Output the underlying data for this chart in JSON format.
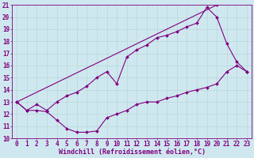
{
  "bg_color": "#cfe8ef",
  "line_color": "#800080",
  "grid_color": "#b0d4d4",
  "xlim": [
    -0.5,
    23.5
  ],
  "ylim": [
    10,
    21
  ],
  "xticks": [
    0,
    1,
    2,
    3,
    4,
    5,
    6,
    7,
    8,
    9,
    10,
    11,
    12,
    13,
    14,
    15,
    16,
    17,
    18,
    19,
    20,
    21,
    22,
    23
  ],
  "yticks": [
    10,
    11,
    12,
    13,
    14,
    15,
    16,
    17,
    18,
    19,
    20,
    21
  ],
  "xlabel": "Windchill (Refroidissement éolien,°C)",
  "line1_x": [
    0,
    1,
    2,
    3,
    4,
    5,
    6,
    7,
    8,
    9,
    10,
    11,
    12,
    13,
    14,
    15,
    16,
    17,
    18,
    19,
    20,
    21,
    22,
    23
  ],
  "line1_y": [
    13.0,
    12.3,
    12.3,
    12.2,
    11.5,
    10.8,
    10.5,
    10.5,
    10.6,
    11.7,
    12.0,
    12.3,
    12.8,
    13.0,
    13.0,
    13.3,
    13.5,
    13.8,
    14.0,
    14.2,
    14.5,
    15.5,
    16.0,
    15.5
  ],
  "line2_x": [
    0,
    1,
    2,
    3,
    4,
    5,
    6,
    7,
    8,
    9,
    10,
    11,
    12,
    13,
    14,
    15,
    16,
    17,
    18,
    19,
    20,
    21,
    22,
    23
  ],
  "line2_y": [
    13.0,
    12.3,
    12.8,
    12.3,
    13.0,
    13.5,
    13.8,
    14.3,
    15.0,
    15.5,
    14.5,
    16.7,
    17.3,
    17.7,
    18.3,
    18.5,
    18.8,
    19.2,
    19.5,
    20.8,
    20.0,
    17.8,
    16.3,
    15.5
  ],
  "line3_x": [
    0,
    20
  ],
  "line3_y": [
    13.0,
    21.0
  ],
  "xlabel_fontsize": 6,
  "tick_fontsize": 5.5,
  "marker": "D",
  "markersize": 2,
  "linewidth": 0.8,
  "figwidth": 3.2,
  "figheight": 2.0,
  "dpi": 100
}
